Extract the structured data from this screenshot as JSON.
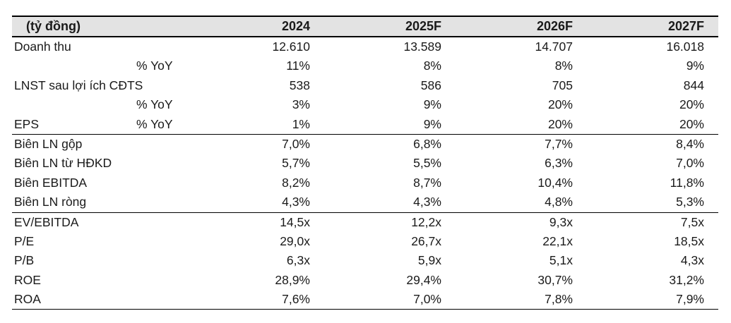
{
  "table": {
    "header": {
      "unit": "(tỷ đồng)",
      "years": [
        "2024",
        "2025F",
        "2026F",
        "2027F"
      ]
    },
    "rows": [
      {
        "label": "Doanh thu",
        "sub": "",
        "values": [
          "12.610",
          "13.589",
          "14.707",
          "16.018"
        ]
      },
      {
        "label": "",
        "sub": "% YoY",
        "values": [
          "11%",
          "8%",
          "8%",
          "9%"
        ]
      },
      {
        "label": "LNST sau lợi ích CĐTS",
        "sub": "",
        "values": [
          "538",
          "586",
          "705",
          "844"
        ]
      },
      {
        "label": "",
        "sub": "% YoY",
        "values": [
          "3%",
          "9%",
          "20%",
          "20%"
        ]
      },
      {
        "label": "EPS",
        "sub": "% YoY",
        "values": [
          "1%",
          "9%",
          "20%",
          "20%"
        ]
      },
      {
        "label": "Biên LN gộp",
        "sub": "",
        "values": [
          "7,0%",
          "6,8%",
          "7,7%",
          "8,4%"
        ]
      },
      {
        "label": "Biên LN từ HĐKD",
        "sub": "",
        "values": [
          "5,7%",
          "5,5%",
          "6,3%",
          "7,0%"
        ]
      },
      {
        "label": "Biên EBITDA",
        "sub": "",
        "values": [
          "8,2%",
          "8,7%",
          "10,4%",
          "11,8%"
        ]
      },
      {
        "label": "Biên LN ròng",
        "sub": "",
        "values": [
          "4,3%",
          "4,3%",
          "4,8%",
          "5,3%"
        ]
      },
      {
        "label": "EV/EBITDA",
        "sub": "",
        "values": [
          "14,5x",
          "12,2x",
          "9,3x",
          "7,5x"
        ]
      },
      {
        "label": "P/E",
        "sub": "",
        "values": [
          "29,0x",
          "26,7x",
          "22,1x",
          "18,5x"
        ]
      },
      {
        "label": "P/B",
        "sub": "",
        "values": [
          "6,3x",
          "5,9x",
          "5,1x",
          "4,3x"
        ]
      },
      {
        "label": "ROE",
        "sub": "",
        "values": [
          "28,9%",
          "29,4%",
          "30,7%",
          "31,2%"
        ]
      },
      {
        "label": "ROA",
        "sub": "",
        "values": [
          "7,6%",
          "7,0%",
          "7,8%",
          "7,9%"
        ]
      }
    ]
  }
}
